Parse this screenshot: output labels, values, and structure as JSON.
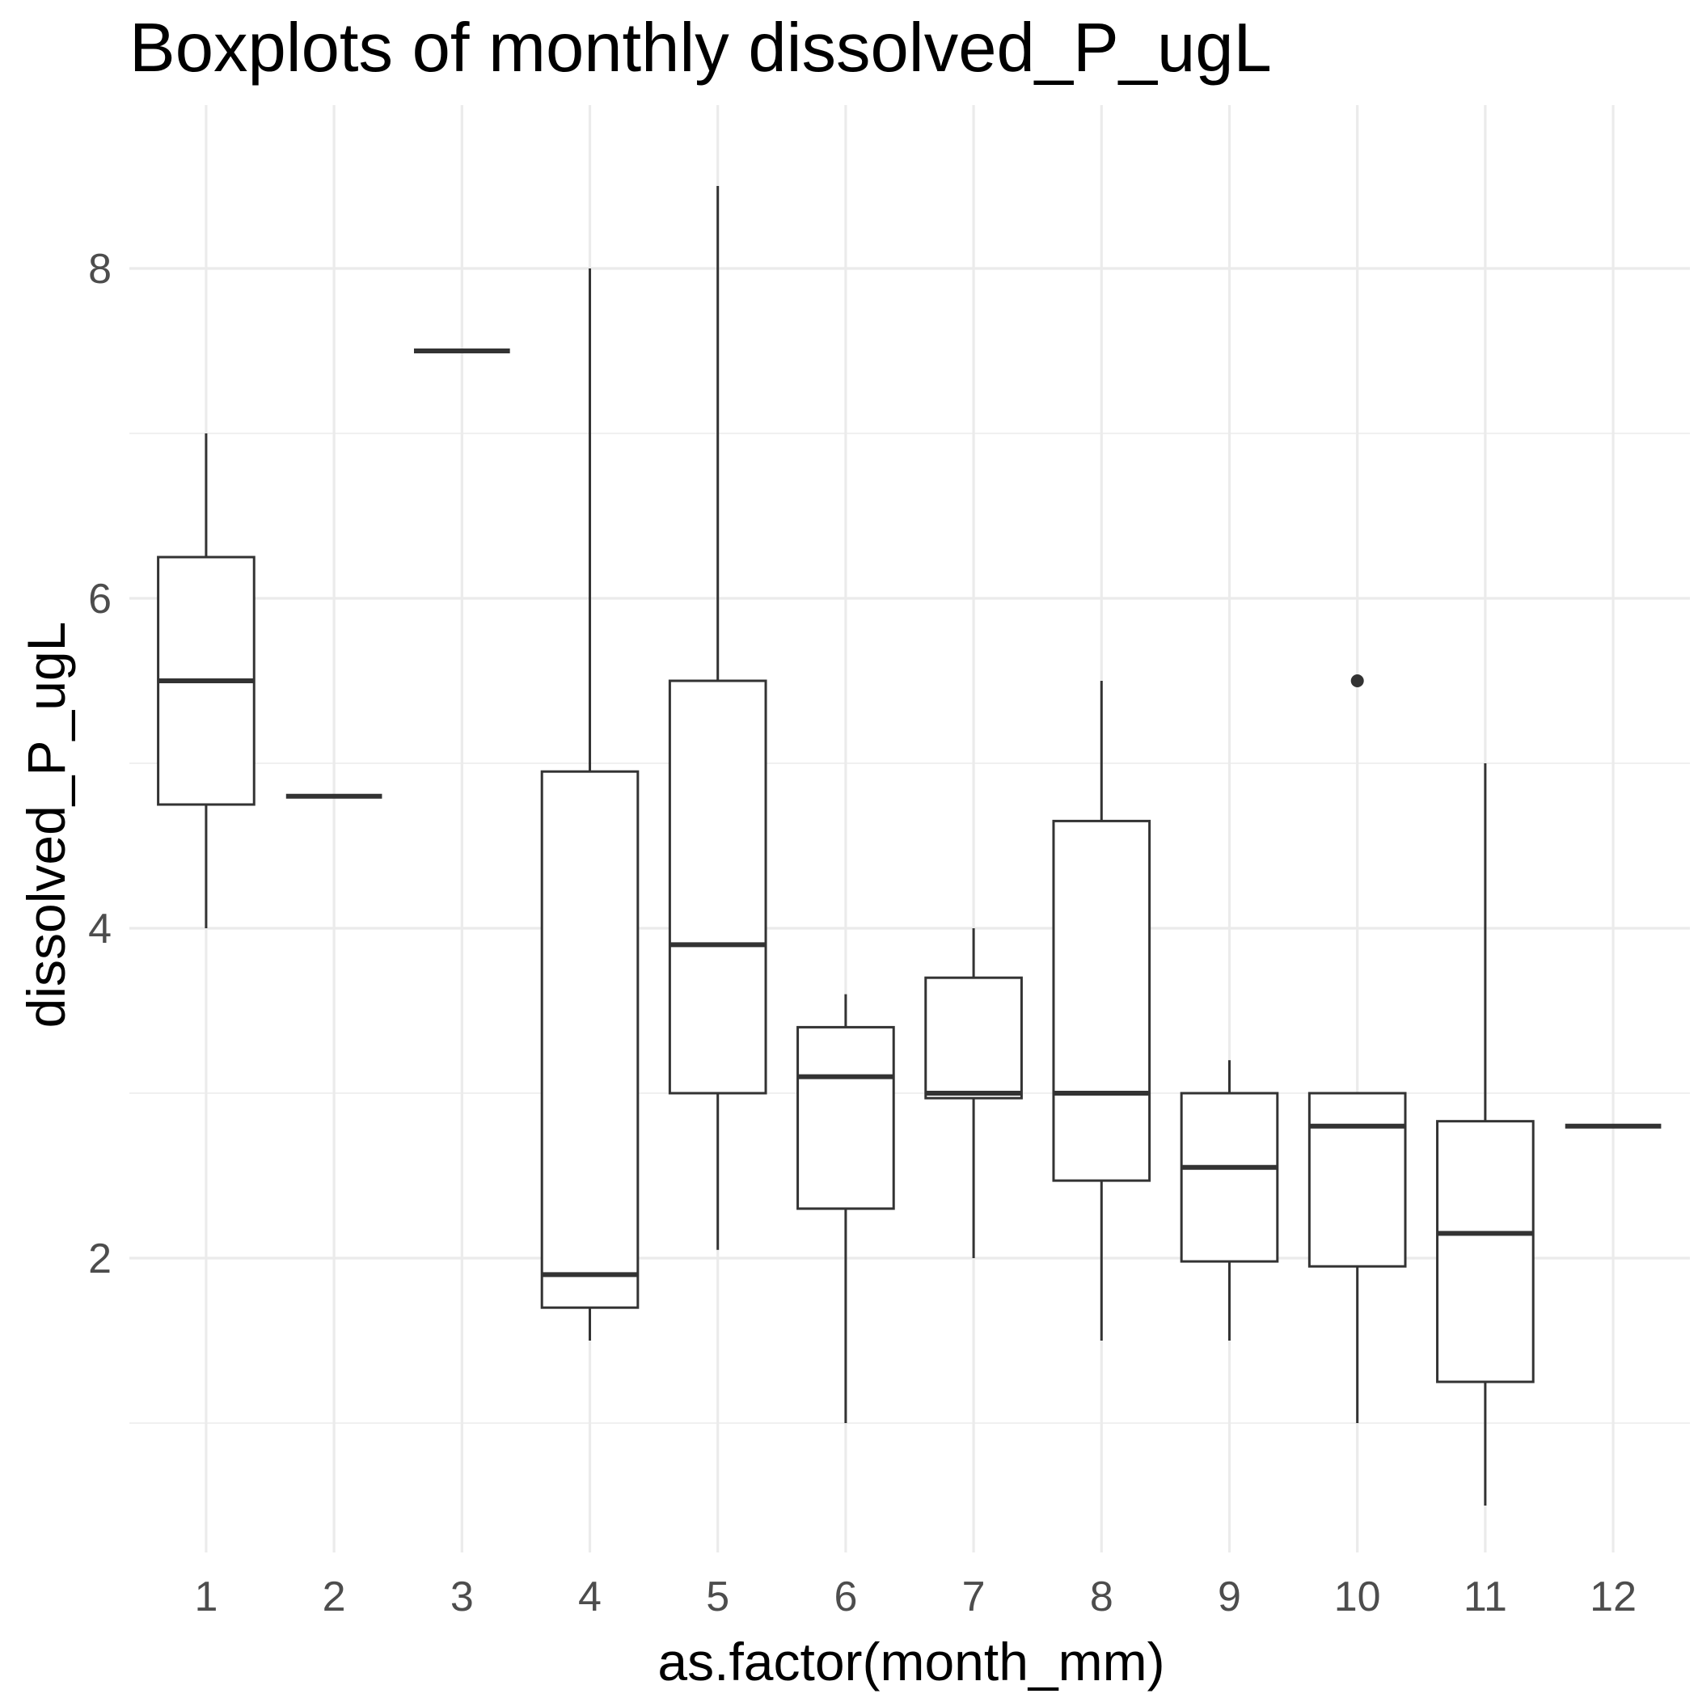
{
  "chart_data": {
    "type": "box",
    "title": "Boxplots of monthly dissolved_P_ugL",
    "xlabel": "as.factor(month_mm)",
    "ylabel": "dissolved_P_ugL",
    "categories": [
      "1",
      "2",
      "3",
      "4",
      "5",
      "6",
      "7",
      "8",
      "9",
      "10",
      "11",
      "12"
    ],
    "yticks": [
      "2",
      "4",
      "6",
      "8"
    ],
    "ylim": [
      0,
      9
    ],
    "grid": true,
    "boxes": [
      {
        "category": "1",
        "min": 4.0,
        "q1": 4.75,
        "median": 5.5,
        "q3": 6.25,
        "max": 7.0,
        "outliers": []
      },
      {
        "category": "2",
        "min": 4.8,
        "q1": 4.8,
        "median": 4.8,
        "q3": 4.8,
        "max": 4.8,
        "outliers": []
      },
      {
        "category": "3",
        "min": 7.5,
        "q1": 7.5,
        "median": 7.5,
        "q3": 7.5,
        "max": 7.5,
        "outliers": []
      },
      {
        "category": "4",
        "min": 1.5,
        "q1": 1.7,
        "median": 1.9,
        "q3": 4.95,
        "max": 8.0,
        "outliers": []
      },
      {
        "category": "5",
        "min": 2.05,
        "q1": 3.0,
        "median": 3.9,
        "q3": 5.5,
        "max": 8.5,
        "outliers": []
      },
      {
        "category": "6",
        "min": 1.0,
        "q1": 2.3,
        "median": 3.1,
        "q3": 3.4,
        "max": 3.6,
        "outliers": []
      },
      {
        "category": "7",
        "min": 2.0,
        "q1": 2.97,
        "median": 3.0,
        "q3": 3.7,
        "max": 4.0,
        "outliers": []
      },
      {
        "category": "8",
        "min": 1.5,
        "q1": 2.47,
        "median": 3.0,
        "q3": 4.65,
        "max": 5.5,
        "outliers": []
      },
      {
        "category": "9",
        "min": 1.5,
        "q1": 1.98,
        "median": 2.55,
        "q3": 3.0,
        "max": 3.2,
        "outliers": []
      },
      {
        "category": "10",
        "min": 1.0,
        "q1": 1.95,
        "median": 2.8,
        "q3": 3.0,
        "max": 3.0,
        "outliers": [
          5.5
        ]
      },
      {
        "category": "11",
        "min": 0.5,
        "q1": 1.25,
        "median": 2.15,
        "q3": 2.83,
        "max": 5.0,
        "outliers": []
      },
      {
        "category": "12",
        "min": 2.8,
        "q1": 2.8,
        "median": 2.8,
        "q3": 2.8,
        "max": 2.8,
        "outliers": []
      }
    ]
  }
}
